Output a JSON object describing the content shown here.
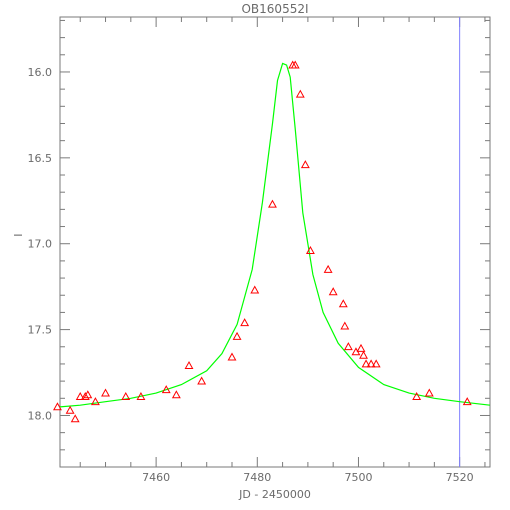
{
  "chart_data": {
    "type": "scatter",
    "title": "OB160552I",
    "xlabel": "JD - 2450000",
    "ylabel": "I",
    "xlim": [
      7441.0,
      7526.0
    ],
    "ylim": [
      18.3,
      15.68
    ],
    "y_inverted": true,
    "grid": false,
    "x_ticks": [
      7460,
      7480,
      7500,
      7520
    ],
    "x_tick_labels": [
      "7460",
      "7480",
      "7500",
      "7520"
    ],
    "y_ticks": [
      16.0,
      16.5,
      17.0,
      17.5,
      18.0
    ],
    "y_tick_labels": [
      "16.0",
      "16.5",
      "17.0",
      "17.5",
      "18.0"
    ],
    "series": [
      {
        "marker": "triangle",
        "color": "#ff0000",
        "x": [
          7443.0,
          7444.0,
          7445.0,
          7446.0,
          7446.5,
          7448.0,
          7450.0,
          7454.0,
          7457.0,
          7462.0,
          7464.0,
          7466.5,
          7469.0,
          7475.0,
          7476.0,
          7477.5,
          7479.5,
          7483.0,
          7487.0,
          7487.5,
          7488.5,
          7489.5,
          7490.5,
          7494.0,
          7495.0,
          7497.0,
          7497.3,
          7498.0,
          7499.5,
          7500.5,
          7501.0,
          7501.5,
          7502.5,
          7503.5,
          7511.5,
          7514.0,
          7521.5,
          7440.5
        ],
        "y": [
          17.97,
          18.02,
          17.89,
          17.89,
          17.88,
          17.92,
          17.87,
          17.89,
          17.89,
          17.85,
          17.88,
          17.71,
          17.8,
          17.66,
          17.54,
          17.46,
          17.27,
          16.77,
          15.96,
          15.96,
          16.13,
          16.54,
          17.04,
          17.15,
          17.28,
          17.35,
          17.48,
          17.6,
          17.63,
          17.61,
          17.65,
          17.7,
          17.7,
          17.7,
          17.89,
          17.87,
          17.92,
          17.95
        ]
      },
      {
        "type": "line",
        "color": "#00ff00",
        "x": [
          7441,
          7445,
          7450,
          7455,
          7460,
          7465,
          7470,
          7473,
          7476,
          7479,
          7481,
          7483,
          7484,
          7485,
          7485.8,
          7486.5,
          7487.5,
          7489,
          7491,
          7493,
          7496,
          7500,
          7505,
          7510,
          7515,
          7520,
          7526
        ],
        "y": [
          17.95,
          17.94,
          17.92,
          17.9,
          17.87,
          17.82,
          17.74,
          17.64,
          17.47,
          17.15,
          16.76,
          16.3,
          16.05,
          15.95,
          15.96,
          16.03,
          16.33,
          16.82,
          17.18,
          17.4,
          17.58,
          17.72,
          17.82,
          17.87,
          17.9,
          17.92,
          17.94
        ]
      }
    ],
    "annotations": [
      {
        "type": "vline",
        "x": 7520.0,
        "color": "#8080ff"
      }
    ]
  }
}
